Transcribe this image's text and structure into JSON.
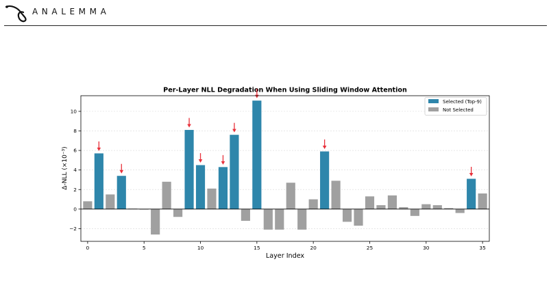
{
  "header": {
    "brand": "ANALEMMA"
  },
  "chart_data": {
    "type": "bar",
    "title": "Per-Layer NLL Degradation When Using Sliding Window Attention",
    "xlabel": "Layer Index",
    "ylabel": "Δ-NLL (×10⁻³)",
    "xlim": [
      -0.6,
      35.6
    ],
    "ylim": [
      -3.3,
      11.6
    ],
    "xticks": [
      0,
      5,
      10,
      15,
      20,
      25,
      30,
      35
    ],
    "yticks": [
      -2,
      0,
      2,
      4,
      6,
      8,
      10
    ],
    "grid": "y",
    "legend_position": "top-right",
    "x": [
      0,
      1,
      2,
      3,
      4,
      5,
      6,
      7,
      8,
      9,
      10,
      11,
      12,
      13,
      14,
      15,
      16,
      17,
      18,
      19,
      20,
      21,
      22,
      23,
      24,
      25,
      26,
      27,
      28,
      29,
      30,
      31,
      32,
      33,
      34,
      35
    ],
    "values": [
      0.8,
      5.7,
      1.5,
      3.4,
      0.05,
      -0.05,
      -2.6,
      2.8,
      -0.8,
      8.1,
      4.5,
      2.1,
      4.3,
      7.6,
      -1.2,
      11.1,
      -2.1,
      -2.1,
      2.7,
      -2.1,
      1.0,
      5.9,
      2.9,
      -1.3,
      -1.7,
      1.3,
      0.4,
      1.4,
      0.2,
      -0.7,
      0.5,
      0.4,
      0.1,
      -0.4,
      3.1,
      1.6
    ],
    "selected_layers": [
      1,
      3,
      9,
      10,
      12,
      13,
      15,
      21,
      34
    ],
    "series": [
      {
        "name": "Selected (Top-9)",
        "color": "#2e86ab"
      },
      {
        "name": "Not Selected",
        "color": "#a0a0a0"
      }
    ],
    "annotation_color": "#e8313b"
  }
}
